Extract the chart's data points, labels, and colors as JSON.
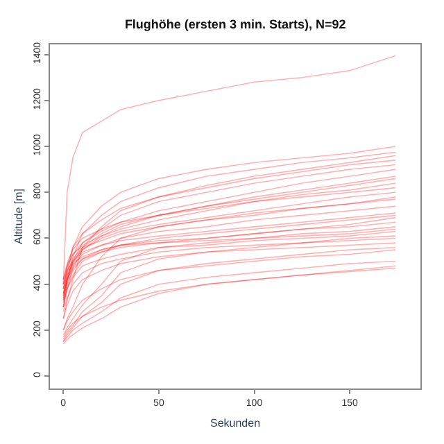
{
  "chart_data": {
    "type": "line",
    "title": "Flughöhe (ersten 3 min. Starts), N=92",
    "xlabel": "Sekunden",
    "ylabel": "Altitude [m]",
    "x": [
      0,
      2,
      5,
      10,
      20,
      30,
      50,
      75,
      100,
      125,
      150,
      174
    ],
    "xlim": [
      -7,
      187
    ],
    "ylim": [
      -54,
      1444
    ],
    "xticks": [
      0,
      50,
      100,
      150
    ],
    "yticks": [
      0,
      200,
      400,
      600,
      800,
      1000,
      1200,
      1400
    ],
    "marker": "none",
    "line_style": "solid",
    "series": [
      {
        "color": "#ff0000",
        "values": [
          400,
          800,
          950,
          1060,
          1110,
          1160,
          1200,
          1240,
          1280,
          1300,
          1330,
          1395
        ]
      },
      {
        "color": "#ff0000",
        "values": [
          350,
          450,
          560,
          650,
          740,
          800,
          860,
          900,
          930,
          950,
          970,
          1000
        ]
      },
      {
        "color": "#ff0000",
        "values": [
          300,
          420,
          520,
          620,
          700,
          760,
          820,
          870,
          900,
          930,
          950,
          975
        ]
      },
      {
        "color": "#ff0000",
        "values": [
          250,
          330,
          420,
          560,
          650,
          720,
          780,
          830,
          870,
          900,
          930,
          960
        ]
      },
      {
        "color": "#ff0000",
        "values": [
          380,
          480,
          560,
          620,
          680,
          730,
          780,
          820,
          860,
          890,
          920,
          940
        ]
      },
      {
        "color": "#ff0000",
        "values": [
          330,
          420,
          500,
          580,
          640,
          700,
          760,
          800,
          840,
          870,
          900,
          920
        ]
      },
      {
        "color": "#ff0000",
        "values": [
          400,
          470,
          530,
          580,
          630,
          670,
          720,
          760,
          800,
          840,
          870,
          900
        ]
      },
      {
        "color": "#ff0000",
        "values": [
          300,
          380,
          470,
          550,
          610,
          650,
          700,
          740,
          780,
          810,
          840,
          870
        ]
      },
      {
        "color": "#ff0000",
        "values": [
          420,
          480,
          530,
          570,
          610,
          640,
          680,
          720,
          760,
          790,
          810,
          840
        ]
      },
      {
        "color": "#ff0000",
        "values": [
          350,
          430,
          500,
          550,
          600,
          630,
          660,
          690,
          720,
          750,
          780,
          800
        ]
      },
      {
        "color": "#ff0000",
        "values": [
          380,
          450,
          510,
          560,
          590,
          620,
          650,
          680,
          700,
          730,
          750,
          780
        ]
      },
      {
        "color": "#ff0000",
        "values": [
          200,
          250,
          300,
          400,
          520,
          600,
          650,
          680,
          710,
          730,
          750,
          770
        ]
      },
      {
        "color": "#ff0000",
        "values": [
          360,
          420,
          480,
          530,
          570,
          600,
          630,
          650,
          680,
          700,
          720,
          740
        ]
      },
      {
        "color": "#ff0000",
        "values": [
          400,
          460,
          500,
          540,
          570,
          590,
          610,
          630,
          650,
          670,
          690,
          710
        ]
      },
      {
        "color": "#ff0000",
        "values": [
          300,
          380,
          440,
          500,
          540,
          570,
          600,
          620,
          640,
          660,
          680,
          700
        ]
      },
      {
        "color": "#ff0000",
        "values": [
          340,
          400,
          460,
          510,
          550,
          570,
          590,
          600,
          620,
          640,
          650,
          670
        ]
      },
      {
        "color": "#ff0000",
        "values": [
          380,
          440,
          490,
          520,
          550,
          570,
          580,
          590,
          600,
          610,
          620,
          640
        ]
      },
      {
        "color": "#ff0000",
        "values": [
          180,
          210,
          250,
          310,
          400,
          500,
          560,
          580,
          600,
          620,
          630,
          650
        ]
      },
      {
        "color": "#ff0000",
        "values": [
          320,
          380,
          430,
          480,
          510,
          530,
          560,
          570,
          590,
          600,
          610,
          630
        ]
      },
      {
        "color": "#ff0000",
        "values": [
          280,
          340,
          400,
          450,
          490,
          510,
          540,
          560,
          570,
          580,
          600,
          610
        ]
      },
      {
        "color": "#ff0000",
        "values": [
          160,
          190,
          220,
          280,
          350,
          450,
          510,
          540,
          560,
          580,
          590,
          600
        ]
      },
      {
        "color": "#ff0000",
        "values": [
          250,
          310,
          370,
          420,
          460,
          490,
          520,
          540,
          550,
          560,
          570,
          580
        ]
      },
      {
        "color": "#ff0000",
        "values": [
          150,
          180,
          210,
          260,
          320,
          400,
          460,
          490,
          510,
          530,
          550,
          560
        ]
      },
      {
        "color": "#ff0000",
        "values": [
          200,
          240,
          280,
          330,
          380,
          420,
          460,
          480,
          500,
          520,
          530,
          550
        ]
      },
      {
        "color": "#ff0000",
        "values": [
          150,
          170,
          200,
          230,
          280,
          340,
          400,
          430,
          450,
          470,
          490,
          500
        ]
      },
      {
        "color": "#ff0000",
        "values": [
          140,
          160,
          180,
          210,
          250,
          300,
          360,
          400,
          420,
          440,
          460,
          480
        ]
      },
      {
        "color": "#ff0000",
        "values": [
          170,
          200,
          230,
          260,
          300,
          330,
          370,
          400,
          420,
          440,
          455,
          470
        ]
      },
      {
        "color": "#ff0000",
        "values": [
          360,
          420,
          470,
          510,
          540,
          560,
          580,
          600,
          620,
          640,
          660,
          690
        ]
      },
      {
        "color": "#ff0000",
        "values": [
          330,
          410,
          490,
          560,
          620,
          660,
          700,
          740,
          770,
          800,
          830,
          860
        ]
      },
      {
        "color": "#ff0000",
        "values": [
          420,
          490,
          550,
          600,
          640,
          670,
          700,
          730,
          760,
          780,
          800,
          820
        ]
      }
    ]
  }
}
